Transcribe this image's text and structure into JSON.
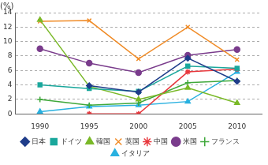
{
  "chart_data": {
    "type": "line",
    "y_label": "(%)",
    "categories": [
      "1990",
      "1995",
      "2000",
      "2005",
      "2010"
    ],
    "ylim": [
      0,
      14
    ],
    "yticks": [
      0,
      2,
      4,
      6,
      8,
      10,
      12,
      14
    ],
    "grid": true,
    "legend": "bottom",
    "series": [
      {
        "name": "日本",
        "color": "#1f3d8a",
        "marker": "diamond",
        "values": [
          null,
          3.9,
          3.0,
          7.7,
          4.5
        ]
      },
      {
        "name": "ドイツ",
        "color": "#1aa79c",
        "marker": "square",
        "values": [
          4.0,
          3.5,
          3.1,
          6.6,
          6.3
        ]
      },
      {
        "name": "韓国",
        "color": "#7ab928",
        "marker": "triangle",
        "values": [
          13.0,
          3.8,
          2.0,
          3.6,
          1.5
        ]
      },
      {
        "name": "英国",
        "color": "#f08c28",
        "marker": "x",
        "values": [
          12.8,
          12.9,
          7.6,
          12.0,
          7.5
        ]
      },
      {
        "name": "中国",
        "color": "#e8383d",
        "marker": "asterisk",
        "values": [
          null,
          0,
          0,
          5.8,
          6.2
        ]
      },
      {
        "name": "米国",
        "color": "#7a3c8c",
        "marker": "circle",
        "values": [
          9.0,
          7.0,
          5.7,
          8.1,
          8.9
        ]
      },
      {
        "name": "フランス",
        "color": "#3fa83a",
        "marker": "plus",
        "values": [
          2.0,
          1.2,
          1.5,
          4.3,
          4.6
        ]
      },
      {
        "name": "イタリア",
        "color": "#29b1e0",
        "marker": "triangle",
        "values": [
          0.3,
          1.0,
          1.2,
          1.7,
          5.8
        ]
      }
    ]
  }
}
